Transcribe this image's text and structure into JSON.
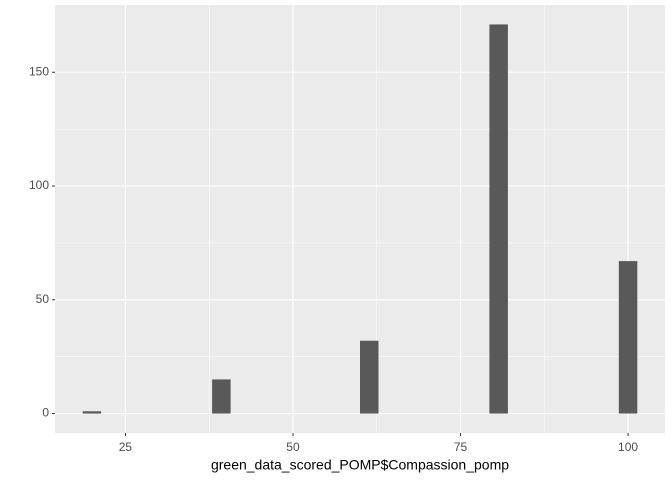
{
  "chart_data": {
    "type": "histogram",
    "x_label": "green_data_scored_POMP$Compassion_pomp",
    "bins": [
      18.62,
      21.38,
      24.14,
      26.9,
      29.65,
      32.41,
      35.17,
      37.93,
      40.69,
      43.45,
      46.21,
      48.97,
      51.72,
      54.48,
      57.24,
      60.0,
      62.76,
      65.52,
      68.28,
      71.03,
      73.79,
      76.55,
      79.31,
      82.07,
      84.83,
      87.59,
      90.34,
      93.1,
      95.86,
      98.62,
      101.38
    ],
    "values": [
      1,
      0,
      0,
      0,
      0,
      0,
      0,
      15,
      0,
      0,
      0,
      0,
      0,
      0,
      0,
      32,
      0,
      0,
      0,
      0,
      0,
      0,
      171,
      0,
      0,
      0,
      0,
      0,
      0,
      67
    ],
    "color": "#595959",
    "xlim": [
      14.49,
      105.51
    ],
    "xticks": [
      25,
      50,
      75,
      100
    ],
    "x_minor_ticks": [
      37.5,
      62.5,
      87.5
    ],
    "ylim": [
      -8.55,
      179.55
    ],
    "yticks": [
      0,
      50,
      100,
      150
    ],
    "y_minor_ticks": [
      25,
      75,
      125
    ],
    "grid": true
  }
}
